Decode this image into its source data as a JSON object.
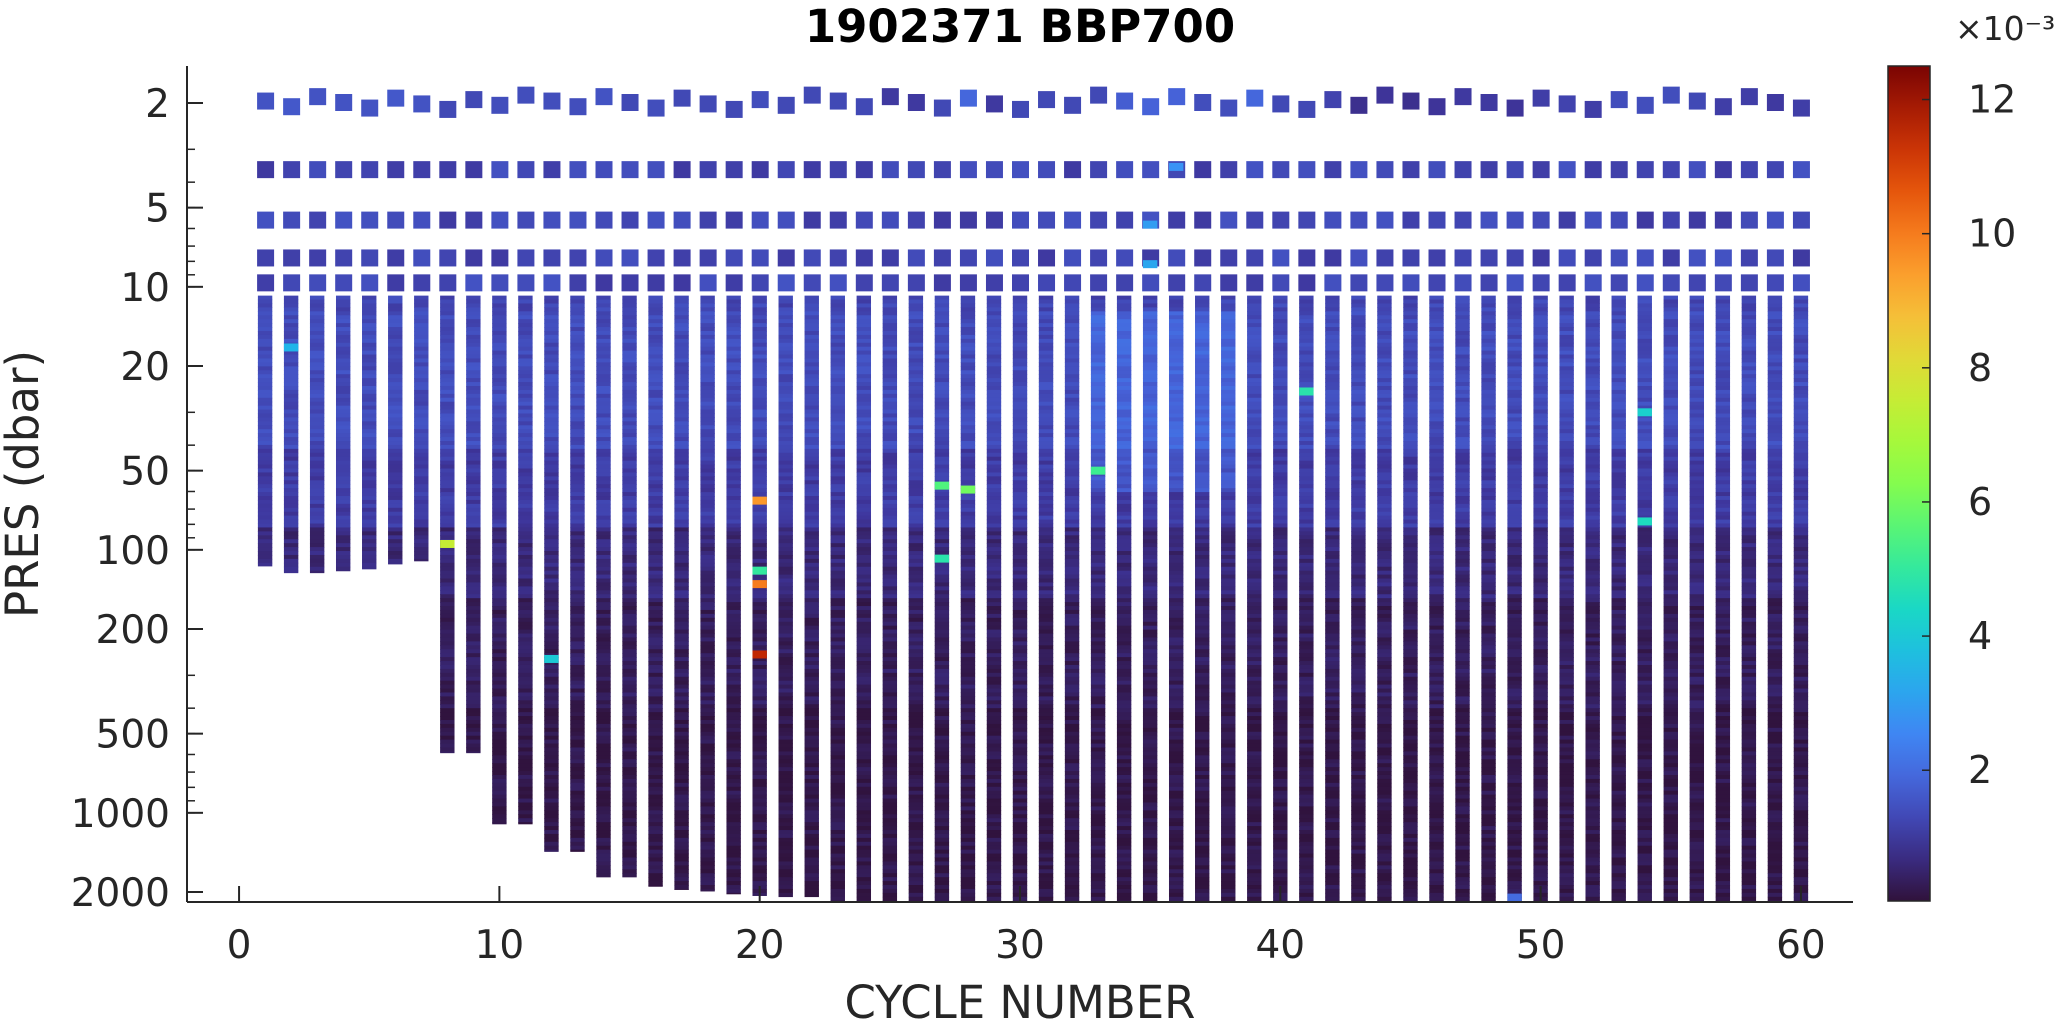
{
  "chart_data": {
    "type": "heatmap",
    "title": "1902371 BBP700",
    "xlabel": "CYCLE NUMBER",
    "ylabel": "PRES (dbar)",
    "xlim": [
      -2,
      62
    ],
    "ylim": [
      1.65,
      2200
    ],
    "yscale": "log",
    "y_reversed": true,
    "xticks": [
      0,
      10,
      20,
      30,
      40,
      50,
      60
    ],
    "yticks": [
      2,
      5,
      10,
      20,
      50,
      100,
      200,
      500,
      1000,
      2000
    ],
    "grid": false,
    "colorbar": {
      "label_exponent": "×10⁻³",
      "scale_factor": 0.001,
      "range": [
        0.05,
        12.5
      ],
      "ticks": [
        2,
        4,
        6,
        8,
        10,
        12
      ],
      "colormap": "turbo"
    },
    "cycles": [
      1,
      2,
      3,
      4,
      5,
      6,
      7,
      8,
      9,
      10,
      11,
      12,
      13,
      14,
      15,
      16,
      17,
      18,
      19,
      20,
      21,
      22,
      23,
      24,
      25,
      26,
      27,
      28,
      29,
      30,
      31,
      32,
      33,
      34,
      35,
      36,
      37,
      38,
      39,
      40,
      41,
      42,
      43,
      44,
      45,
      46,
      47,
      48,
      49,
      50,
      51,
      52,
      53,
      54,
      55,
      56,
      57,
      58,
      59,
      60
    ],
    "max_pressure_dbar": [
      115,
      122,
      122,
      120,
      118,
      113,
      110,
      590,
      590,
      1100,
      1100,
      1400,
      1400,
      1750,
      1750,
      1900,
      1950,
      1980,
      2030,
      2060,
      2080,
      2080,
      2200,
      2200,
      2200,
      2200,
      2200,
      2200,
      2200,
      2200,
      2200,
      2200,
      2200,
      2200,
      2200,
      2200,
      2200,
      2200,
      2200,
      2200,
      2200,
      2200,
      2200,
      2200,
      2200,
      2200,
      2200,
      2200,
      2200,
      2200,
      2200,
      2200,
      2200,
      2200,
      2200,
      2200,
      2200,
      2200,
      2200,
      2200
    ],
    "surface_bbp700_e-3": [
      1.5,
      1.6,
      1.5,
      1.5,
      1.5,
      1.6,
      1.5,
      1.3,
      1.3,
      1.4,
      1.4,
      1.4,
      1.4,
      1.5,
      1.3,
      1.4,
      1.3,
      1.3,
      1.3,
      1.4,
      1.3,
      1.3,
      1.3,
      1.3,
      1.0,
      1.0,
      1.3,
      1.9,
      1.0,
      1.3,
      1.3,
      1.3,
      1.3,
      1.7,
      1.8,
      1.8,
      1.4,
      1.4,
      1.9,
      1.3,
      1.3,
      1.2,
      0.8,
      0.9,
      0.8,
      0.9,
      1.0,
      1.0,
      0.9,
      1.1,
      1.2,
      1.1,
      1.4,
      1.4,
      1.4,
      1.3,
      1.1,
      1.1,
      1.0,
      1.1
    ],
    "anomalies": [
      {
        "cycle": 2,
        "pres": 17,
        "value": 3.5
      },
      {
        "cycle": 8,
        "pres": 95,
        "value": 7.5
      },
      {
        "cycle": 12,
        "pres": 260,
        "value": 4.0
      },
      {
        "cycle": 20,
        "pres": 65,
        "value": 9.5
      },
      {
        "cycle": 20,
        "pres": 120,
        "value": 5.0
      },
      {
        "cycle": 20,
        "pres": 135,
        "value": 10.0
      },
      {
        "cycle": 20,
        "pres": 250,
        "value": 11.5
      },
      {
        "cycle": 27,
        "pres": 57,
        "value": 5.5
      },
      {
        "cycle": 27,
        "pres": 108,
        "value": 4.8
      },
      {
        "cycle": 28,
        "pres": 59,
        "value": 6.0
      },
      {
        "cycle": 33,
        "pres": 50,
        "value": 5.2
      },
      {
        "cycle": 41,
        "pres": 25,
        "value": 4.8
      },
      {
        "cycle": 54,
        "pres": 30,
        "value": 4.2
      },
      {
        "cycle": 54,
        "pres": 78,
        "value": 4.5
      },
      {
        "cycle": 35,
        "pres": 5.8,
        "value": 3.0
      },
      {
        "cycle": 35,
        "pres": 8.2,
        "value": 3.2
      },
      {
        "cycle": 36,
        "pres": 3.5,
        "value": 2.8
      },
      {
        "cycle": 49,
        "pres": 2100,
        "value": 2.0
      }
    ]
  }
}
